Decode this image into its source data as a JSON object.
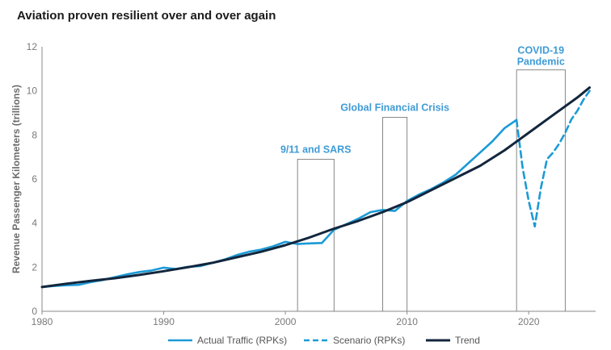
{
  "title": "Aviation proven resilient over and over again",
  "colors": {
    "actual": "#1c9ad6",
    "scenario": "#1c9ad6",
    "trend": "#13263d",
    "annotation": "#3f9bd6",
    "box": "#7a7a7a"
  },
  "chart_data": {
    "type": "line",
    "title": "Aviation proven resilient over and over again",
    "xlabel": "",
    "ylabel": "Revenue Passenger Kilometers (trillions)",
    "xlim": [
      1980,
      2025.5
    ],
    "ylim": [
      0,
      12
    ],
    "xticks": [
      1980,
      1990,
      2000,
      2010,
      2020
    ],
    "yticks": [
      0,
      2,
      4,
      6,
      8,
      10,
      12
    ],
    "grid": false,
    "legend_position": "bottom",
    "series": [
      {
        "name": "Actual Traffic (RPKs)",
        "style": "solid",
        "x": [
          1980,
          1981,
          1982,
          1983,
          1984,
          1985,
          1986,
          1987,
          1988,
          1989,
          1990,
          1991,
          1992,
          1993,
          1994,
          1995,
          1996,
          1997,
          1998,
          1999,
          2000,
          2001,
          2002,
          2003,
          2004,
          2005,
          2006,
          2007,
          2008,
          2009,
          2010,
          2011,
          2012,
          2013,
          2014,
          2015,
          2016,
          2017,
          2018,
          2019
        ],
        "values": [
          1.1,
          1.15,
          1.18,
          1.2,
          1.32,
          1.42,
          1.55,
          1.68,
          1.78,
          1.85,
          1.98,
          1.92,
          2.02,
          2.05,
          2.2,
          2.35,
          2.55,
          2.7,
          2.8,
          2.95,
          3.15,
          3.05,
          3.08,
          3.1,
          3.7,
          3.95,
          4.2,
          4.5,
          4.6,
          4.55,
          5.0,
          5.3,
          5.55,
          5.85,
          6.2,
          6.7,
          7.2,
          7.7,
          8.3,
          8.68
        ]
      },
      {
        "name": "Scenario (RPKs)",
        "style": "dashed",
        "x": [
          2019,
          2019.5,
          2020,
          2020.5,
          2021,
          2021.5,
          2022,
          2022.5,
          2023,
          2023.5,
          2024,
          2024.5,
          2025
        ],
        "values": [
          8.68,
          6.5,
          5.0,
          3.85,
          5.6,
          6.9,
          7.2,
          7.6,
          8.1,
          8.7,
          9.1,
          9.6,
          10.0
        ]
      },
      {
        "name": "Trend",
        "style": "solid",
        "x": [
          1980,
          1982,
          1984,
          1986,
          1988,
          1990,
          1992,
          1994,
          1996,
          1998,
          2000,
          2002,
          2004,
          2006,
          2008,
          2010,
          2012,
          2014,
          2016,
          2018,
          2020,
          2022,
          2024,
          2025
        ],
        "values": [
          1.1,
          1.25,
          1.38,
          1.5,
          1.65,
          1.82,
          2.0,
          2.2,
          2.45,
          2.7,
          3.0,
          3.35,
          3.75,
          4.1,
          4.5,
          4.95,
          5.5,
          6.05,
          6.6,
          7.3,
          8.1,
          8.9,
          9.7,
          10.15
        ]
      }
    ],
    "annotations": [
      {
        "label": "9/11 and SARS",
        "x_start": 2001,
        "x_end": 2004,
        "y_top": 6.9
      },
      {
        "label": "Global Financial Crisis",
        "x_start": 2008,
        "x_end": 2010,
        "y_top": 8.8
      },
      {
        "label_lines": [
          "COVID-19",
          "Pandemic"
        ],
        "x_start": 2019,
        "x_end": 2023,
        "y_top": 10.95
      }
    ]
  }
}
